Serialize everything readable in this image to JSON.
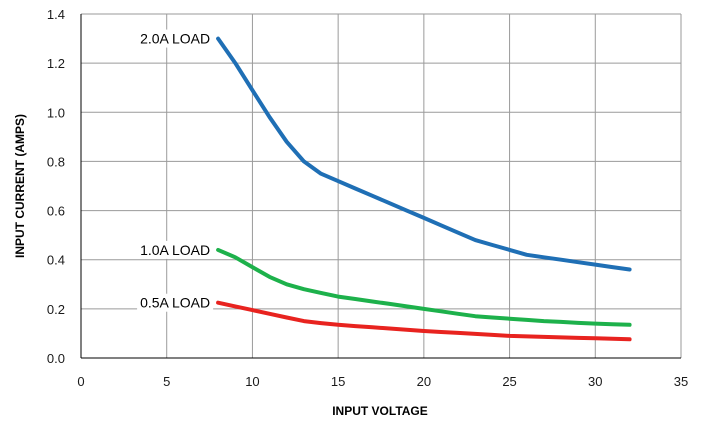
{
  "chart_data": {
    "type": "line",
    "xlabel": "INPUT VOLTAGE",
    "ylabel": "INPUT CURRENT (AMPS)",
    "xlim": [
      0,
      35
    ],
    "ylim": [
      0,
      1.4
    ],
    "xticks": [
      0,
      5,
      10,
      15,
      20,
      25,
      30,
      35
    ],
    "yticks": [
      "0.0",
      "0.2",
      "0.4",
      "0.6",
      "0.8",
      "1.0",
      "1.2",
      "1.4"
    ],
    "grid": true,
    "series": [
      {
        "name": "2.0A LOAD",
        "color": "#1f6fb5",
        "x": [
          8,
          9,
          10,
          11,
          12,
          13,
          14,
          15,
          16,
          17,
          18,
          19,
          20,
          21,
          22,
          23,
          24,
          25,
          26,
          27,
          28,
          29,
          30,
          31,
          32
        ],
        "y": [
          1.3,
          1.2,
          1.09,
          0.98,
          0.88,
          0.8,
          0.75,
          0.72,
          0.69,
          0.66,
          0.63,
          0.6,
          0.57,
          0.54,
          0.51,
          0.48,
          0.46,
          0.44,
          0.42,
          0.41,
          0.4,
          0.39,
          0.38,
          0.37,
          0.36
        ]
      },
      {
        "name": "1.0A  LOAD",
        "color": "#1db14b",
        "x": [
          8,
          9,
          10,
          11,
          12,
          13,
          14,
          15,
          16,
          17,
          18,
          19,
          20,
          21,
          22,
          23,
          24,
          25,
          26,
          27,
          28,
          29,
          30,
          31,
          32
        ],
        "y": [
          0.44,
          0.41,
          0.37,
          0.33,
          0.3,
          0.28,
          0.265,
          0.25,
          0.24,
          0.23,
          0.22,
          0.21,
          0.2,
          0.19,
          0.18,
          0.17,
          0.165,
          0.16,
          0.155,
          0.15,
          0.147,
          0.143,
          0.14,
          0.137,
          0.135
        ]
      },
      {
        "name": "0.5A LOAD",
        "color": "#e8231f",
        "x": [
          8,
          9,
          10,
          11,
          12,
          13,
          14,
          15,
          16,
          17,
          18,
          19,
          20,
          21,
          22,
          23,
          24,
          25,
          26,
          27,
          28,
          29,
          30,
          31,
          32
        ],
        "y": [
          0.225,
          0.21,
          0.195,
          0.18,
          0.165,
          0.15,
          0.142,
          0.135,
          0.13,
          0.125,
          0.12,
          0.115,
          0.11,
          0.106,
          0.102,
          0.098,
          0.094,
          0.09,
          0.088,
          0.086,
          0.084,
          0.082,
          0.08,
          0.078,
          0.076
        ]
      }
    ]
  }
}
